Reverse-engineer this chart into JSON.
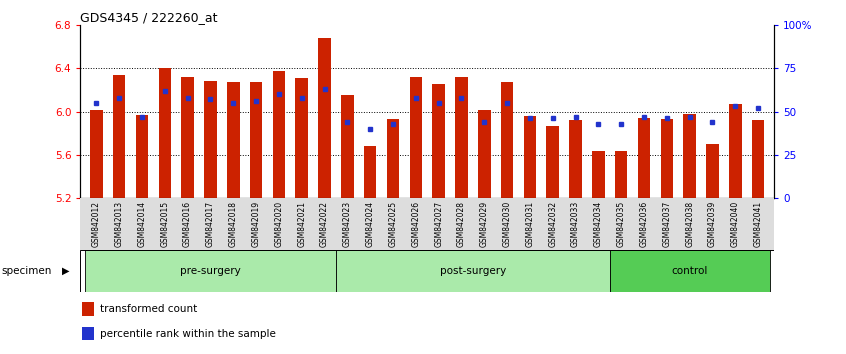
{
  "title": "GDS4345 / 222260_at",
  "samples": [
    "GSM842012",
    "GSM842013",
    "GSM842014",
    "GSM842015",
    "GSM842016",
    "GSM842017",
    "GSM842018",
    "GSM842019",
    "GSM842020",
    "GSM842021",
    "GSM842022",
    "GSM842023",
    "GSM842024",
    "GSM842025",
    "GSM842026",
    "GSM842027",
    "GSM842028",
    "GSM842029",
    "GSM842030",
    "GSM842031",
    "GSM842032",
    "GSM842033",
    "GSM842034",
    "GSM842035",
    "GSM842036",
    "GSM842037",
    "GSM842038",
    "GSM842039",
    "GSM842040",
    "GSM842041"
  ],
  "red_values": [
    6.01,
    6.34,
    5.97,
    6.4,
    6.32,
    6.28,
    6.27,
    6.27,
    6.37,
    6.31,
    6.68,
    6.15,
    5.68,
    5.93,
    6.32,
    6.25,
    6.32,
    6.01,
    6.27,
    5.96,
    5.87,
    5.92,
    5.64,
    5.64,
    5.94,
    5.93,
    5.98,
    5.7,
    6.07,
    5.92
  ],
  "blue_values": [
    55,
    58,
    47,
    62,
    58,
    57,
    55,
    56,
    60,
    58,
    63,
    44,
    40,
    43,
    58,
    55,
    58,
    44,
    55,
    46,
    46,
    47,
    43,
    43,
    47,
    46,
    47,
    44,
    53,
    52
  ],
  "groups": [
    {
      "label": "pre-surgery",
      "start": 0,
      "end": 11,
      "color": "#AAEAAA"
    },
    {
      "label": "post-surgery",
      "start": 11,
      "end": 23,
      "color": "#AAEAAA"
    },
    {
      "label": "control",
      "start": 23,
      "end": 30,
      "color": "#55CC55"
    }
  ],
  "ylim": [
    5.2,
    6.8
  ],
  "y2lim": [
    0,
    100
  ],
  "yticks": [
    5.2,
    5.6,
    6.0,
    6.4,
    6.8
  ],
  "y2ticks": [
    0,
    25,
    50,
    75,
    100
  ],
  "y2ticklabels": [
    "0",
    "25",
    "50",
    "75",
    "100%"
  ],
  "bar_color": "#CC2200",
  "dot_color": "#2233CC",
  "bar_bottom": 5.2,
  "grid_lines": [
    5.6,
    6.0,
    6.4
  ],
  "legend_items": [
    {
      "label": "transformed count",
      "color": "#CC2200"
    },
    {
      "label": "percentile rank within the sample",
      "color": "#2233CC"
    }
  ]
}
